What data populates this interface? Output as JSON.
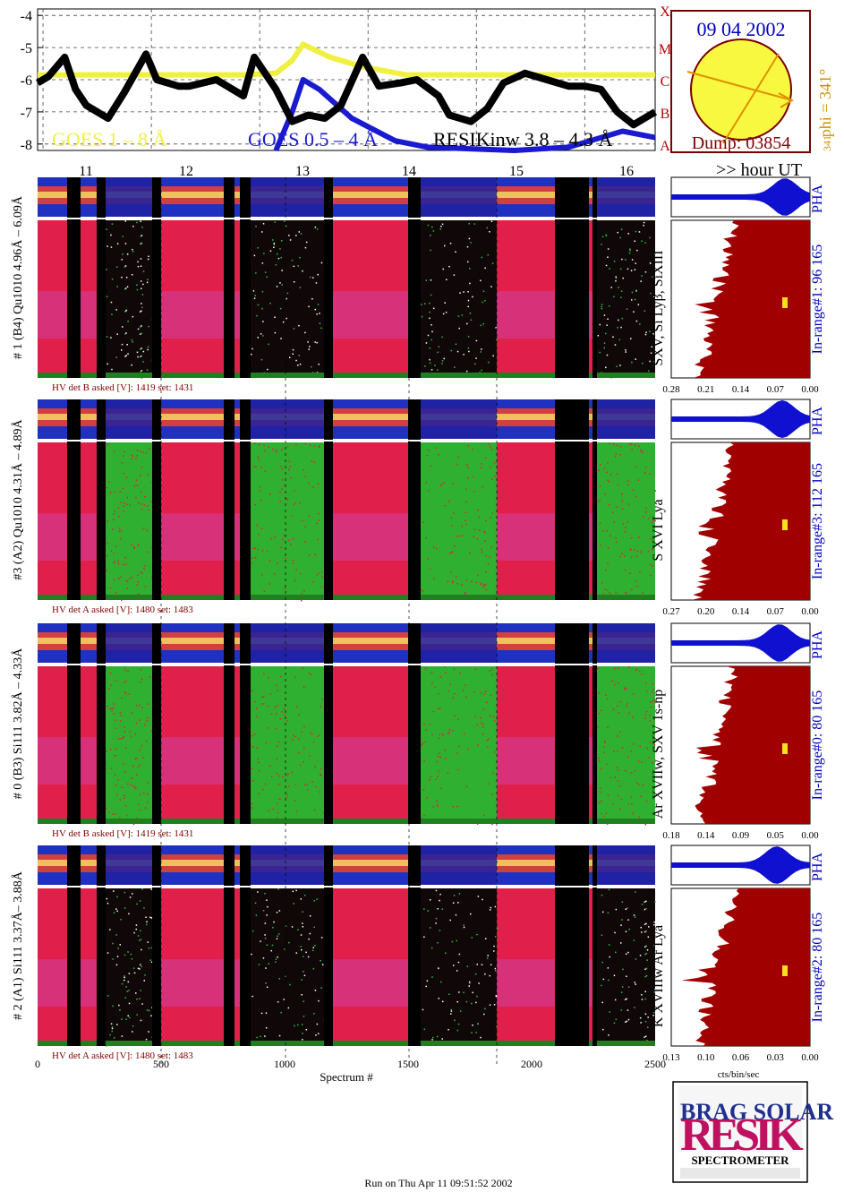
{
  "date": "09 04 2002",
  "dump": "Dump: 03854",
  "phi": "phi = 341°",
  "phi_sub": "341",
  "phi_side": "341",
  "goes_scale": [
    "X",
    "M",
    "C",
    "B",
    "A"
  ],
  "goes_legend": {
    "long": "GOES 1 – 8 Å",
    "short": "GOES 0.5 – 4 Å",
    "resik": "RESIKinw 3.8 – 4.3 Å"
  },
  "hour_axis_label": ">> hour UT",
  "spectrum_axis_label": "Spectrum #",
  "cts_axis_label": "cts/bin/sec",
  "pha_label": "PHA",
  "run_info": "Run on Thu Apr 11 09:51:52 2002",
  "logo": {
    "text": "RESIK",
    "subtitle": "SPECTROMETER",
    "letters": "BRAG SOLAR"
  },
  "colors": {
    "goes_long": "#f0f040",
    "goes_short": "#1a1ad0",
    "resik": "#000000",
    "histogram": "#a00000",
    "pha": "#1010d0",
    "hv_text": "#800000",
    "axis_label_blue": "#0000c0",
    "phi_color": "#d09000"
  },
  "channels": [
    {
      "label": "# 1 (B4) Qu1010 4.96Å – 6.09Å",
      "lines": "SXV, Si Lyβ, SiXIII",
      "hv": "HV det B asked [V]:  1419 set:  1431",
      "range": "In-range#1:  96 165",
      "ticks": [
        "0.28",
        "0.21",
        "0.14",
        "0.07",
        "0.00"
      ]
    },
    {
      "label": "#3 (A2) Qu1010  4.31Å – 4.89Å",
      "lines": "S XVI Lya",
      "hv": "HV det A asked [V]:  1480 set:  1483",
      "range": "In-range#3:  112 165",
      "ticks": [
        "0.27",
        "0.20",
        "0.14",
        "0.07",
        "0.00"
      ]
    },
    {
      "label": "# 0 (B3) Si111  3.82Å – 4.33Å",
      "lines": "Ar XVIIw,  SXV 1s-np",
      "hv": "HV det B asked [V]:  1419 set:  1431",
      "range": "In-range#0:  80 165",
      "ticks": [
        "0.18",
        "0.14",
        "0.09",
        "0.05",
        "0.00"
      ]
    },
    {
      "label": "# 2 (A1) Si111  3.37Å– 3.88Å",
      "lines": "K XVIIIw  Ar Lya",
      "hv": "HV det A asked [V]:  1480 set:  1483",
      "range": "In-range#2:  80 165",
      "ticks": [
        "0.13",
        "0.10",
        "0.06",
        "0.03",
        "0.00"
      ]
    }
  ],
  "chart_data": {
    "type": "line",
    "goes": {
      "y_ticks": [
        "-4",
        "-5",
        "-6",
        "-7",
        "-8"
      ],
      "ylim": [
        -8.2,
        -3.8
      ],
      "xlim": [
        10.6,
        16.3
      ],
      "hour_ticks": [
        "11",
        "12",
        "13",
        "14",
        "15",
        "16"
      ],
      "series": [
        {
          "name": "GOES 1 – 8 Å",
          "x": [
            10.6,
            12.5,
            12.8,
            12.95,
            13.05,
            13.3,
            13.6,
            14.0,
            16.3
          ],
          "y": [
            -5.85,
            -5.85,
            -5.8,
            -5.4,
            -4.9,
            -5.3,
            -5.6,
            -5.85,
            -5.85
          ]
        },
        {
          "name": "GOES 0.5 – 4 Å",
          "x": [
            12.8,
            12.95,
            13.05,
            13.2,
            13.5,
            13.9,
            14.2,
            15.0,
            15.5,
            16.0,
            16.3
          ],
          "y": [
            -8.2,
            -7.0,
            -6.0,
            -6.3,
            -7.2,
            -7.9,
            -8.1,
            -8.2,
            -8.1,
            -7.6,
            -7.8
          ]
        },
        {
          "name": "RESIKinw 3.8 – 4.3 Å",
          "x": [
            10.6,
            10.7,
            10.85,
            10.95,
            11.05,
            11.25,
            11.4,
            11.6,
            11.7,
            11.9,
            12.0,
            12.25,
            12.5,
            12.6,
            12.8,
            12.95,
            13.1,
            13.25,
            13.4,
            13.6,
            13.75,
            13.95,
            14.1,
            14.3,
            14.4,
            14.6,
            14.75,
            14.9,
            15.1,
            15.3,
            15.5,
            15.65,
            15.8,
            15.95,
            16.1,
            16.3
          ],
          "y": [
            -6.1,
            -5.9,
            -5.3,
            -6.3,
            -6.8,
            -7.2,
            -6.4,
            -5.2,
            -6.0,
            -6.2,
            -6.2,
            -6.0,
            -6.5,
            -5.3,
            -6.3,
            -7.3,
            -7.1,
            -7.2,
            -6.8,
            -5.3,
            -6.2,
            -6.1,
            -6.0,
            -6.5,
            -7.1,
            -7.3,
            -6.9,
            -6.1,
            -5.8,
            -6.0,
            -6.2,
            -6.2,
            -6.3,
            -7.0,
            -7.4,
            -7.0
          ]
        }
      ]
    },
    "spectrum_axis": {
      "ticks": [
        "0",
        "500",
        "1000",
        "1500",
        "2000",
        "2500"
      ],
      "xlim": [
        0,
        2500
      ]
    }
  }
}
